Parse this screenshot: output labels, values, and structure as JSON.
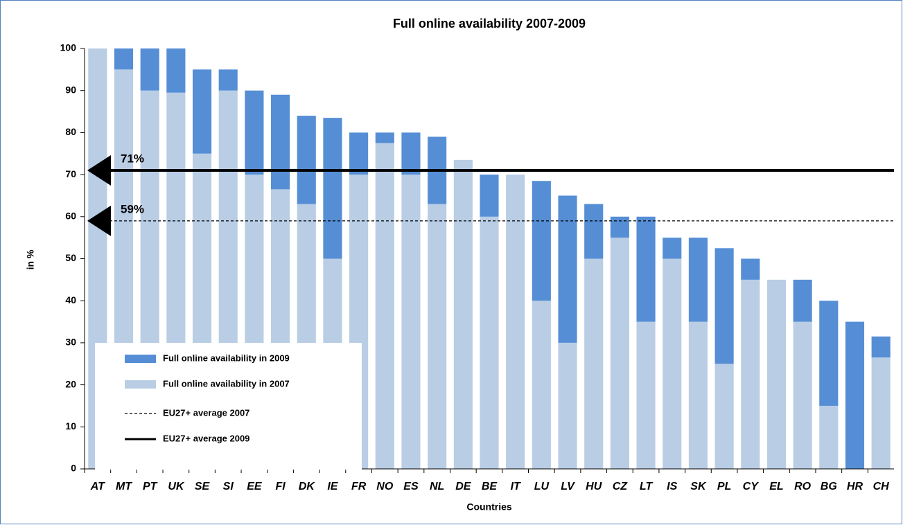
{
  "chart_data": {
    "type": "stacked_bar",
    "title": "Full online availability 2007-2009",
    "x_label": "Countries",
    "y_label": "in %",
    "categories": [
      "AT",
      "MT",
      "PT",
      "UK",
      "SE",
      "SI",
      "EE",
      "FI",
      "DK",
      "IE",
      "FR",
      "NO",
      "ES",
      "NL",
      "DE",
      "BE",
      "IT",
      "LU",
      "LV",
      "HU",
      "CZ",
      "LT",
      "IS",
      "SK",
      "PL",
      "CY",
      "EL",
      "RO",
      "BG",
      "HR",
      "CH"
    ],
    "series": [
      {
        "name": "Full online availability in 2007",
        "color": "#b9cde5",
        "values": [
          100,
          95,
          90,
          89.5,
          75,
          90,
          70,
          66.5,
          63,
          50,
          70,
          77.5,
          70,
          63,
          73.5,
          60,
          70,
          40,
          30,
          50,
          55,
          35,
          50,
          35,
          25,
          45,
          45,
          35,
          15,
          0,
          26.5
        ]
      },
      {
        "name": "Full online availability in 2009",
        "color": "#558ed5",
        "values": [
          0,
          5,
          10,
          10.5,
          20,
          5,
          20,
          22.5,
          21,
          33.5,
          10,
          2.5,
          10,
          16,
          0,
          10,
          0,
          28.5,
          35,
          13,
          5,
          25,
          5,
          20,
          27.5,
          5,
          0,
          10,
          25,
          35,
          5
        ]
      }
    ],
    "averages": [
      {
        "name": "EU27+ average 2007",
        "value": 59,
        "value_label": "59%",
        "style": "dashed"
      },
      {
        "name": "EU27+ average 2009",
        "value": 71,
        "value_label": "71%",
        "style": "solid"
      }
    ],
    "ylim": [
      0,
      100
    ],
    "yticks": [
      0,
      10,
      20,
      30,
      40,
      50,
      60,
      70,
      80,
      90,
      100
    ]
  }
}
